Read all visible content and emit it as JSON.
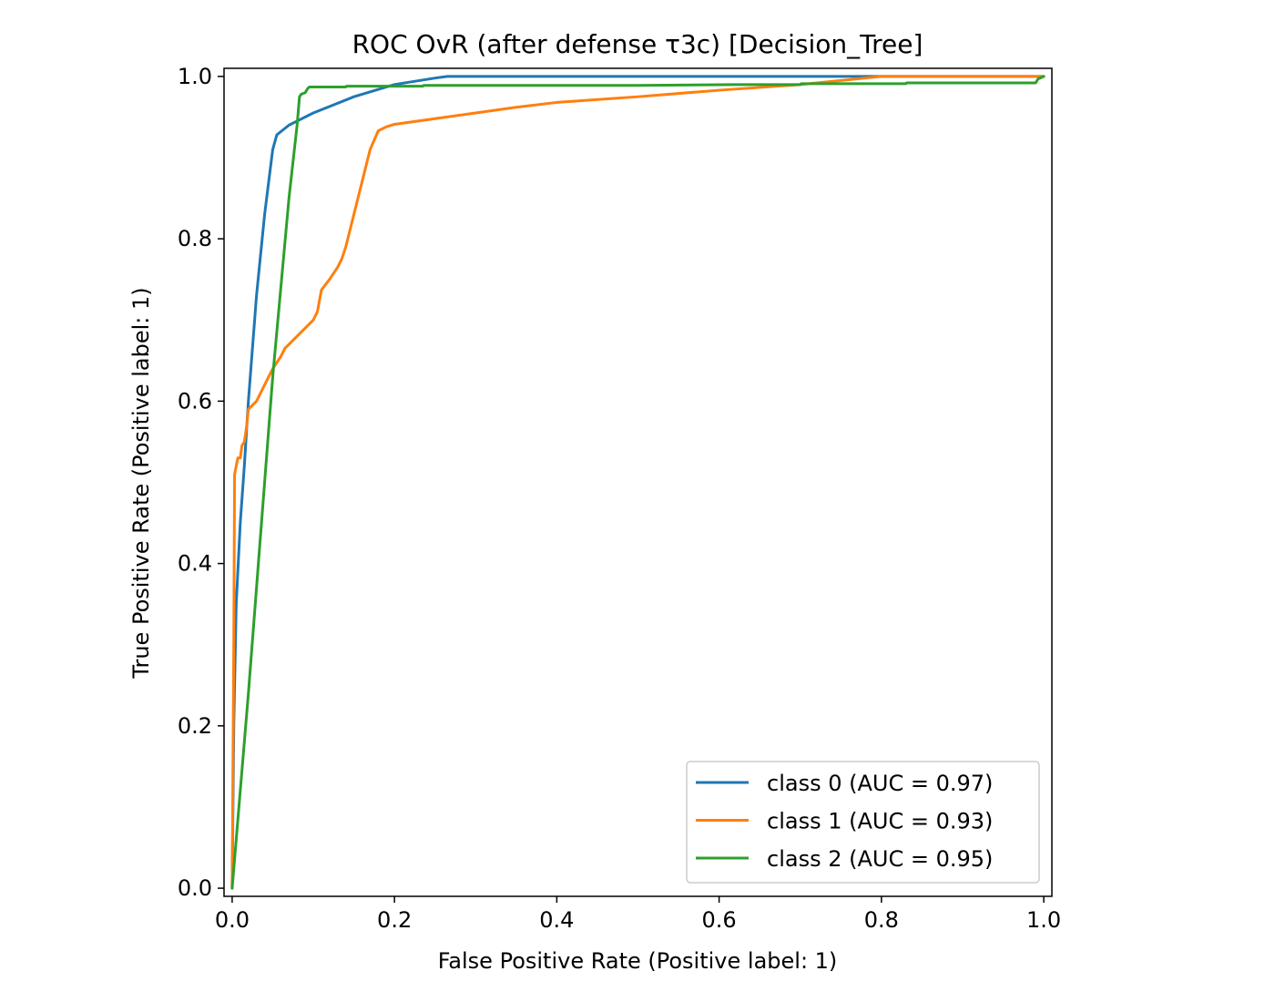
{
  "chart_data": {
    "type": "line",
    "title": "ROC OvR (after defense τ3c) [Decision_Tree]",
    "xlabel": "False Positive Rate (Positive label: 1)",
    "ylabel": "True Positive Rate (Positive label: 1)",
    "xlim": [
      -0.01,
      1.01
    ],
    "ylim": [
      -0.01,
      1.01
    ],
    "xticks": [
      0.0,
      0.2,
      0.4,
      0.6,
      0.8,
      1.0
    ],
    "xtick_labels": [
      "0.0",
      "0.2",
      "0.4",
      "0.6",
      "0.8",
      "1.0"
    ],
    "yticks": [
      0.0,
      0.2,
      0.4,
      0.6,
      0.8,
      1.0
    ],
    "ytick_labels": [
      "0.0",
      "0.2",
      "0.4",
      "0.6",
      "0.8",
      "1.0"
    ],
    "grid": false,
    "legend_position": "lower-right",
    "series": [
      {
        "name": "class 0 (AUC = 0.97)",
        "color": "#1f77b4",
        "x": [
          0.0,
          0.002,
          0.005,
          0.01,
          0.015,
          0.02,
          0.03,
          0.04,
          0.05,
          0.055,
          0.06,
          0.07,
          0.08,
          0.1,
          0.15,
          0.2,
          0.25,
          0.265,
          0.3,
          0.5,
          0.7,
          1.0
        ],
        "y": [
          0.0,
          0.2,
          0.35,
          0.45,
          0.52,
          0.6,
          0.73,
          0.83,
          0.91,
          0.928,
          0.932,
          0.94,
          0.945,
          0.955,
          0.975,
          0.99,
          0.998,
          1.0,
          1.0,
          1.0,
          1.0,
          1.0
        ]
      },
      {
        "name": "class 1 (AUC = 0.93)",
        "color": "#ff7f0e",
        "x": [
          0.0,
          0.002,
          0.003,
          0.005,
          0.007,
          0.01,
          0.012,
          0.015,
          0.018,
          0.02,
          0.03,
          0.04,
          0.05,
          0.06,
          0.065,
          0.08,
          0.1,
          0.105,
          0.11,
          0.12,
          0.13,
          0.135,
          0.14,
          0.15,
          0.16,
          0.17,
          0.18,
          0.19,
          0.2,
          0.25,
          0.3,
          0.35,
          0.4,
          0.5,
          0.6,
          0.7,
          0.75,
          0.8,
          0.9,
          1.0
        ],
        "y": [
          0.0,
          0.3,
          0.51,
          0.52,
          0.53,
          0.53,
          0.545,
          0.55,
          0.57,
          0.59,
          0.6,
          0.62,
          0.64,
          0.655,
          0.665,
          0.68,
          0.7,
          0.71,
          0.737,
          0.75,
          0.765,
          0.775,
          0.79,
          0.83,
          0.87,
          0.91,
          0.933,
          0.938,
          0.941,
          0.948,
          0.955,
          0.962,
          0.968,
          0.975,
          0.983,
          0.99,
          0.995,
          1.0,
          1.0,
          1.0
        ]
      },
      {
        "name": "class 2 (AUC = 0.95)",
        "color": "#2ca02c",
        "x": [
          0.0,
          0.01,
          0.02,
          0.03,
          0.04,
          0.05,
          0.06,
          0.07,
          0.075,
          0.08,
          0.083,
          0.085,
          0.09,
          0.093,
          0.095,
          0.1,
          0.14,
          0.141,
          0.18,
          0.2,
          0.235,
          0.236,
          0.3,
          0.5,
          0.62,
          0.7,
          0.701,
          0.83,
          0.831,
          0.99,
          0.993,
          1.0
        ],
        "y": [
          0.0,
          0.12,
          0.24,
          0.37,
          0.5,
          0.63,
          0.74,
          0.85,
          0.895,
          0.94,
          0.975,
          0.978,
          0.98,
          0.985,
          0.987,
          0.987,
          0.987,
          0.988,
          0.988,
          0.988,
          0.988,
          0.989,
          0.989,
          0.989,
          0.99,
          0.99,
          0.991,
          0.991,
          0.992,
          0.992,
          0.997,
          1.0
        ]
      }
    ]
  }
}
